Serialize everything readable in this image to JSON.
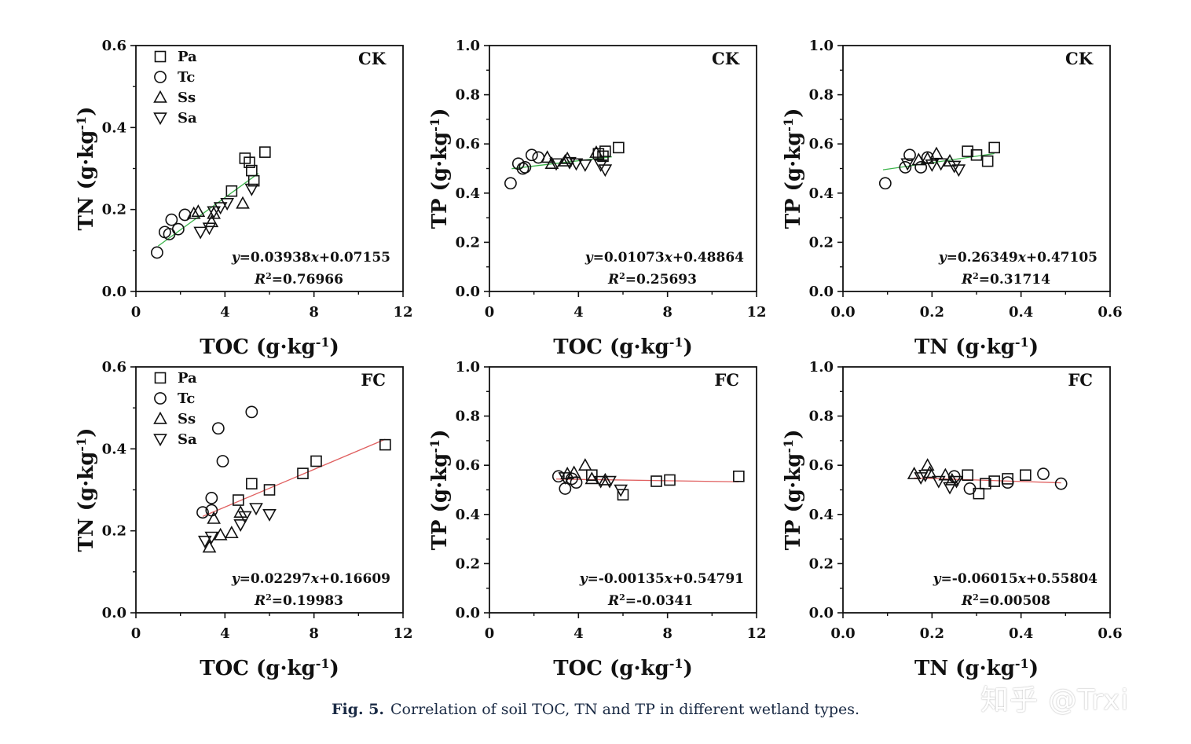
{
  "caption": {
    "label": "Fig. 5.",
    "text": "Correlation of soil TOC, TN and TP in different wetland types."
  },
  "watermark": "知乎 @Trxi",
  "legend_entries": [
    {
      "name": "Pa",
      "marker": "square"
    },
    {
      "name": "Tc",
      "marker": "circle"
    },
    {
      "name": "Ss",
      "marker": "triangle-up"
    },
    {
      "name": "Sa",
      "marker": "triangle-down"
    }
  ],
  "chart_data": [
    {
      "type": "scatter",
      "title": "CK",
      "xlabel": "TOC (g·kg-1)",
      "ylabel": "TN (g·kg-1)",
      "xlim": [
        0,
        12
      ],
      "ylim": [
        0,
        0.6
      ],
      "xticks": [
        "0",
        "4",
        "8",
        "12"
      ],
      "yticks": [
        "0.0",
        "0.2",
        "0.4",
        "0.6"
      ],
      "xtick_values": [
        0,
        4,
        8,
        12
      ],
      "ytick_values": [
        0,
        0.2,
        0.4,
        0.6
      ],
      "legend": true,
      "legend_position": "top-left",
      "grid": false,
      "fit": {
        "slope": 0.03938,
        "intercept": 0.07155,
        "x_range": [
          1.0,
          5.5
        ],
        "color": "#3cb44b"
      },
      "equation": "y=0.03938x+0.07155",
      "r2": "R2=0.76966",
      "series": [
        {
          "name": "Pa",
          "marker": "square",
          "points": [
            [
              4.3,
              0.245
            ],
            [
              4.9,
              0.325
            ],
            [
              5.1,
              0.315
            ],
            [
              5.2,
              0.295
            ],
            [
              5.3,
              0.27
            ],
            [
              5.8,
              0.34
            ]
          ]
        },
        {
          "name": "Tc",
          "marker": "circle",
          "points": [
            [
              0.95,
              0.095
            ],
            [
              1.3,
              0.145
            ],
            [
              1.5,
              0.14
            ],
            [
              1.6,
              0.175
            ],
            [
              1.9,
              0.152
            ],
            [
              2.2,
              0.187
            ]
          ]
        },
        {
          "name": "Ss",
          "marker": "triangle-up",
          "points": [
            [
              2.6,
              0.19
            ],
            [
              2.8,
              0.195
            ],
            [
              3.4,
              0.17
            ],
            [
              3.5,
              0.19
            ],
            [
              4.8,
              0.215
            ]
          ]
        },
        {
          "name": "Sa",
          "marker": "triangle-down",
          "points": [
            [
              2.9,
              0.145
            ],
            [
              3.3,
              0.155
            ],
            [
              3.5,
              0.195
            ],
            [
              3.8,
              0.205
            ],
            [
              4.1,
              0.215
            ],
            [
              5.2,
              0.25
            ]
          ]
        }
      ]
    },
    {
      "type": "scatter",
      "title": "CK",
      "xlabel": "TOC (g·kg-1)",
      "ylabel": "TP (g·kg-1)",
      "xlim": [
        0,
        12
      ],
      "ylim": [
        0,
        1.0
      ],
      "xticks": [
        "0",
        "4",
        "8",
        "12"
      ],
      "yticks": [
        "0.0",
        "0.2",
        "0.4",
        "0.6",
        "0.8",
        "1.0"
      ],
      "xtick_values": [
        0,
        4,
        8,
        12
      ],
      "ytick_values": [
        0,
        0.2,
        0.4,
        0.6,
        0.8,
        1.0
      ],
      "legend": false,
      "grid": false,
      "fit": {
        "slope": 0.01073,
        "intercept": 0.48864,
        "x_range": [
          1.0,
          5.5
        ],
        "color": "#3cb44b"
      },
      "equation": "y=0.01073x+0.48864",
      "r2": "R2=0.25693",
      "series": [
        {
          "name": "Pa",
          "marker": "square",
          "points": [
            [
              4.9,
              0.56
            ],
            [
              5.1,
              0.55
            ],
            [
              5.2,
              0.57
            ],
            [
              5.8,
              0.585
            ]
          ]
        },
        {
          "name": "Tc",
          "marker": "circle",
          "points": [
            [
              0.95,
              0.44
            ],
            [
              1.3,
              0.52
            ],
            [
              1.5,
              0.5
            ],
            [
              1.6,
              0.505
            ],
            [
              1.9,
              0.555
            ],
            [
              2.2,
              0.545
            ]
          ]
        },
        {
          "name": "Ss",
          "marker": "triangle-up",
          "points": [
            [
              2.6,
              0.545
            ],
            [
              2.8,
              0.52
            ],
            [
              3.4,
              0.53
            ],
            [
              3.5,
              0.54
            ],
            [
              4.8,
              0.565
            ]
          ]
        },
        {
          "name": "Sa",
          "marker": "triangle-down",
          "points": [
            [
              3.0,
              0.52
            ],
            [
              3.6,
              0.525
            ],
            [
              3.9,
              0.52
            ],
            [
              4.3,
              0.515
            ],
            [
              5.0,
              0.515
            ],
            [
              5.2,
              0.495
            ]
          ]
        }
      ]
    },
    {
      "type": "scatter",
      "title": "CK",
      "xlabel": "TN (g·kg-1)",
      "ylabel": "TP (g·kg-1)",
      "xlim": [
        0,
        0.6
      ],
      "ylim": [
        0,
        1.0
      ],
      "xticks": [
        "0.0",
        "0.2",
        "0.4",
        "0.6"
      ],
      "yticks": [
        "0.0",
        "0.2",
        "0.4",
        "0.6",
        "0.8",
        "1.0"
      ],
      "xtick_values": [
        0,
        0.2,
        0.4,
        0.6
      ],
      "ytick_values": [
        0,
        0.2,
        0.4,
        0.6,
        0.8,
        1.0
      ],
      "legend": false,
      "grid": false,
      "fit": {
        "slope": 0.26349,
        "intercept": 0.47105,
        "x_range": [
          0.09,
          0.34
        ],
        "color": "#3cb44b"
      },
      "equation": "y=0.26349x+0.47105",
      "r2": "R2=0.31714",
      "series": [
        {
          "name": "Pa",
          "marker": "square",
          "points": [
            [
              0.28,
              0.57
            ],
            [
              0.3,
              0.555
            ],
            [
              0.325,
              0.53
            ],
            [
              0.34,
              0.585
            ]
          ]
        },
        {
          "name": "Tc",
          "marker": "circle",
          "points": [
            [
              0.095,
              0.44
            ],
            [
              0.14,
              0.505
            ],
            [
              0.15,
              0.555
            ],
            [
              0.175,
              0.505
            ],
            [
              0.19,
              0.545
            ]
          ]
        },
        {
          "name": "Ss",
          "marker": "triangle-up",
          "points": [
            [
              0.17,
              0.535
            ],
            [
              0.19,
              0.54
            ],
            [
              0.21,
              0.56
            ],
            [
              0.24,
              0.53
            ]
          ]
        },
        {
          "name": "Sa",
          "marker": "triangle-down",
          "points": [
            [
              0.145,
              0.52
            ],
            [
              0.2,
              0.515
            ],
            [
              0.22,
              0.52
            ],
            [
              0.25,
              0.51
            ],
            [
              0.26,
              0.495
            ]
          ]
        }
      ]
    },
    {
      "type": "scatter",
      "title": "FC",
      "xlabel": "TOC (g·kg-1)",
      "ylabel": "TN (g·kg-1)",
      "xlim": [
        0,
        12
      ],
      "ylim": [
        0,
        0.6
      ],
      "xticks": [
        "0",
        "4",
        "8",
        "12"
      ],
      "yticks": [
        "0.0",
        "0.2",
        "0.4",
        "0.6"
      ],
      "xtick_values": [
        0,
        4,
        8,
        12
      ],
      "ytick_values": [
        0,
        0.2,
        0.4,
        0.6
      ],
      "legend": true,
      "legend_position": "top-left",
      "grid": false,
      "fit": {
        "slope": 0.02297,
        "intercept": 0.16609,
        "x_range": [
          3.0,
          11.2
        ],
        "color": "#e06060"
      },
      "equation": "y=0.02297x+0.16609",
      "r2": "R2=0.19983",
      "series": [
        {
          "name": "Pa",
          "marker": "square",
          "points": [
            [
              4.6,
              0.275
            ],
            [
              5.2,
              0.315
            ],
            [
              6.0,
              0.3
            ],
            [
              7.5,
              0.34
            ],
            [
              8.1,
              0.37
            ],
            [
              11.2,
              0.41
            ]
          ]
        },
        {
          "name": "Tc",
          "marker": "circle",
          "points": [
            [
              3.0,
              0.245
            ],
            [
              3.4,
              0.28
            ],
            [
              3.4,
              0.25
            ],
            [
              3.7,
              0.45
            ],
            [
              3.9,
              0.37
            ],
            [
              5.2,
              0.49
            ]
          ]
        },
        {
          "name": "Ss",
          "marker": "triangle-up",
          "points": [
            [
              3.3,
              0.16
            ],
            [
              3.5,
              0.23
            ],
            [
              3.8,
              0.19
            ],
            [
              4.3,
              0.195
            ],
            [
              4.7,
              0.245
            ]
          ]
        },
        {
          "name": "Sa",
          "marker": "triangle-down",
          "points": [
            [
              3.1,
              0.175
            ],
            [
              3.4,
              0.185
            ],
            [
              4.7,
              0.215
            ],
            [
              4.9,
              0.235
            ],
            [
              5.4,
              0.255
            ],
            [
              6.0,
              0.24
            ]
          ]
        }
      ]
    },
    {
      "type": "scatter",
      "title": "FC",
      "xlabel": "TOC (g·kg-1)",
      "ylabel": "TP (g·kg-1)",
      "xlim": [
        0,
        12
      ],
      "ylim": [
        0,
        1.0
      ],
      "xticks": [
        "0",
        "4",
        "8",
        "12"
      ],
      "yticks": [
        "0.0",
        "0.2",
        "0.4",
        "0.6",
        "0.8",
        "1.0"
      ],
      "xtick_values": [
        0,
        4,
        8,
        12
      ],
      "ytick_values": [
        0,
        0.2,
        0.4,
        0.6,
        0.8,
        1.0
      ],
      "legend": false,
      "grid": false,
      "fit": {
        "slope": -0.00135,
        "intercept": 0.54791,
        "x_range": [
          3.0,
          11.2
        ],
        "color": "#e06060"
      },
      "equation": "y=-0.00135x+0.54791",
      "r2": "R2=-0.0341",
      "series": [
        {
          "name": "Pa",
          "marker": "square",
          "points": [
            [
              4.6,
              0.56
            ],
            [
              6.0,
              0.48
            ],
            [
              7.5,
              0.535
            ],
            [
              8.1,
              0.54
            ],
            [
              11.2,
              0.555
            ]
          ]
        },
        {
          "name": "Tc",
          "marker": "circle",
          "points": [
            [
              3.1,
              0.555
            ],
            [
              3.4,
              0.505
            ],
            [
              3.7,
              0.545
            ],
            [
              3.9,
              0.53
            ]
          ]
        },
        {
          "name": "Ss",
          "marker": "triangle-up",
          "points": [
            [
              3.5,
              0.565
            ],
            [
              3.8,
              0.57
            ],
            [
              4.3,
              0.6
            ],
            [
              4.6,
              0.545
            ],
            [
              5.2,
              0.54
            ]
          ]
        },
        {
          "name": "Sa",
          "marker": "triangle-down",
          "points": [
            [
              3.4,
              0.55
            ],
            [
              5.0,
              0.535
            ],
            [
              5.4,
              0.535
            ],
            [
              5.9,
              0.5
            ]
          ]
        }
      ]
    },
    {
      "type": "scatter",
      "title": "FC",
      "xlabel": "TN (g·kg-1)",
      "ylabel": "TP (g·kg-1)",
      "xlim": [
        0,
        0.6
      ],
      "ylim": [
        0,
        1.0
      ],
      "xticks": [
        "0.0",
        "0.2",
        "0.4",
        "0.6"
      ],
      "yticks": [
        "0.0",
        "0.2",
        "0.4",
        "0.6",
        "0.8",
        "1.0"
      ],
      "xtick_values": [
        0,
        0.2,
        0.4,
        0.6
      ],
      "ytick_values": [
        0,
        0.2,
        0.4,
        0.6,
        0.8,
        1.0
      ],
      "legend": false,
      "grid": false,
      "fit": {
        "slope": -0.06015,
        "intercept": 0.55804,
        "x_range": [
          0.16,
          0.49
        ],
        "color": "#e06060"
      },
      "equation": "y=-0.06015x+0.55804",
      "r2": "R2=0.00508",
      "series": [
        {
          "name": "Pa",
          "marker": "square",
          "points": [
            [
              0.28,
              0.56
            ],
            [
              0.305,
              0.485
            ],
            [
              0.32,
              0.525
            ],
            [
              0.34,
              0.535
            ],
            [
              0.37,
              0.545
            ],
            [
              0.41,
              0.56
            ]
          ]
        },
        {
          "name": "Tc",
          "marker": "circle",
          "points": [
            [
              0.25,
              0.555
            ],
            [
              0.285,
              0.505
            ],
            [
              0.37,
              0.53
            ],
            [
              0.45,
              0.565
            ],
            [
              0.49,
              0.525
            ]
          ]
        },
        {
          "name": "Ss",
          "marker": "triangle-up",
          "points": [
            [
              0.16,
              0.565
            ],
            [
              0.19,
              0.6
            ],
            [
              0.195,
              0.57
            ],
            [
              0.23,
              0.56
            ],
            [
              0.245,
              0.54
            ]
          ]
        },
        {
          "name": "Sa",
          "marker": "triangle-down",
          "points": [
            [
              0.175,
              0.55
            ],
            [
              0.185,
              0.56
            ],
            [
              0.215,
              0.535
            ],
            [
              0.24,
              0.51
            ],
            [
              0.255,
              0.535
            ]
          ]
        }
      ]
    }
  ]
}
